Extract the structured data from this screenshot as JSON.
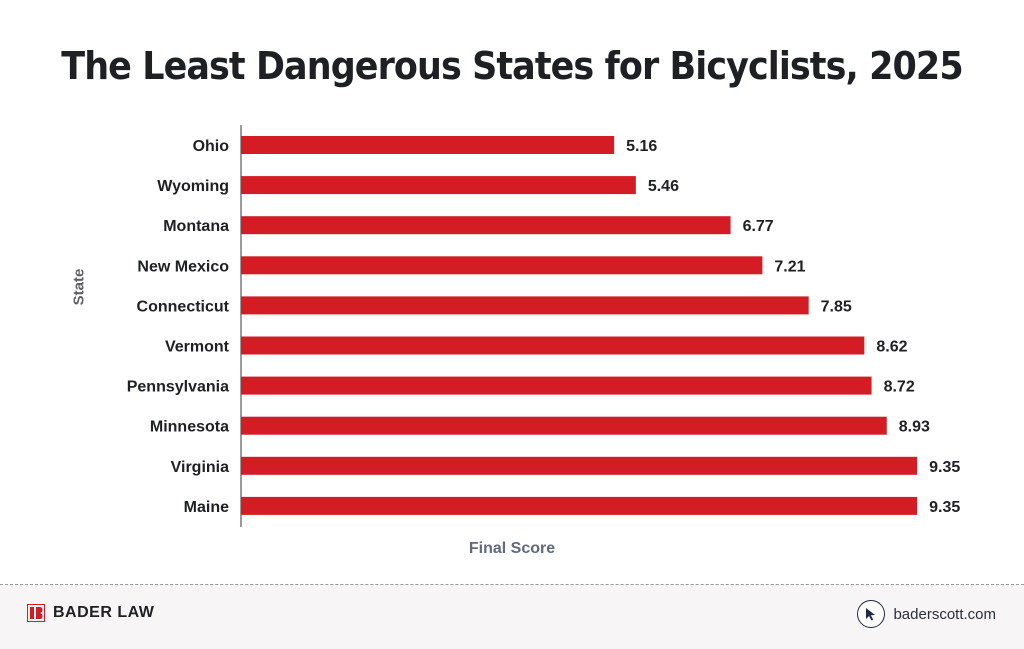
{
  "chart_data": {
    "type": "bar",
    "orientation": "horizontal",
    "title": "The Least Dangerous States for Bicyclists, 2025",
    "xlabel": "Final Score",
    "ylabel": "State",
    "categories": [
      "Ohio",
      "Wyoming",
      "Montana",
      "New Mexico",
      "Connecticut",
      "Vermont",
      "Pennsylvania",
      "Minnesota",
      "Virginia",
      "Maine"
    ],
    "values": [
      5.16,
      5.46,
      6.77,
      7.21,
      7.85,
      8.62,
      8.72,
      8.93,
      9.35,
      9.35
    ],
    "value_labels": [
      "5.16",
      "5.46",
      "6.77",
      "7.21",
      "7.85",
      "8.62",
      "8.72",
      "8.93",
      "9.35",
      "9.35"
    ],
    "xlim": [
      0,
      10.8
    ],
    "grid": false,
    "bar_color": "#d41c24"
  },
  "footer": {
    "brand": "BADER LAW",
    "website": "baderscott.com",
    "brand_icon": "bader-law-logo-icon",
    "link_icon": "cursor-icon"
  }
}
